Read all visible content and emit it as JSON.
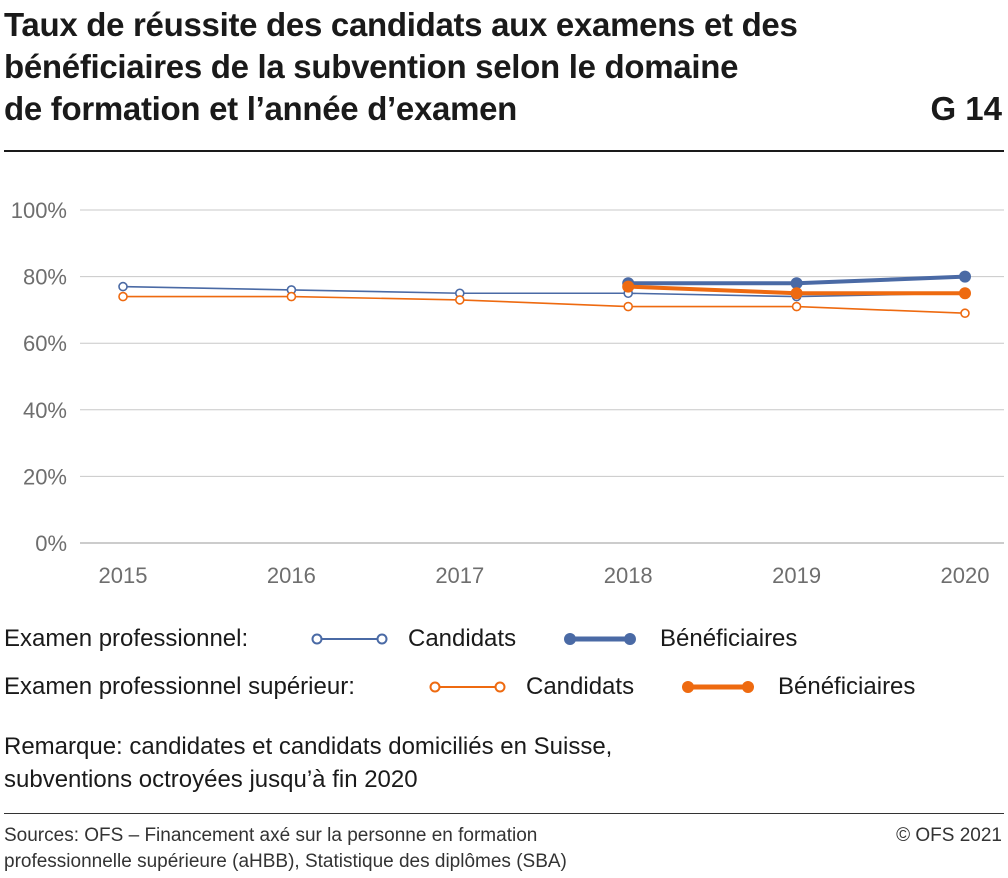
{
  "title_lines": [
    "Taux de réussite des candidats aux examens et des",
    "bénéficiaires de la subvention selon le domaine",
    "de formation et l’année d’examen"
  ],
  "graphic_number": "G 14",
  "legend": {
    "group1_label": "Examen professionnel:",
    "group2_label": "Examen professionnel supérieur:",
    "candidats": "Candidats",
    "beneficiaires": "Bénéficiaires"
  },
  "note_lines": [
    "Remarque: candidates et candidats domiciliés en Suisse,",
    "subventions octroyées jusqu’à fin 2020"
  ],
  "sources_lines": [
    "Sources: OFS – Financement axé sur la personne en formation",
    "professionnelle supérieure (aHBB), Statistique des diplômes (SBA)"
  ],
  "copyright": "© OFS 2021",
  "colors": {
    "blue": "#4a6aa5",
    "orange": "#ee6a10",
    "grid": "#c8c8c8",
    "axis_text": "#6e6e6e"
  },
  "chart_data": {
    "type": "line",
    "x": [
      "2015",
      "2016",
      "2017",
      "2018",
      "2019",
      "2020"
    ],
    "ylim": [
      0,
      100
    ],
    "yticks": [
      0,
      20,
      40,
      60,
      80,
      100
    ],
    "ytick_labels": [
      "0%",
      "20%",
      "40%",
      "60%",
      "80%",
      "100%"
    ],
    "grid": true,
    "legend_position": "bottom",
    "series": [
      {
        "name": "Candidats",
        "group": "Examen professionnel",
        "color": "#4a6aa5",
        "style": "thin-hollow",
        "values": [
          77,
          76,
          75,
          75,
          74,
          75
        ]
      },
      {
        "name": "Candidats",
        "group": "Examen professionnel supérieur",
        "color": "#ee6a10",
        "style": "thin-hollow",
        "values": [
          74,
          74,
          73,
          71,
          71,
          69
        ]
      },
      {
        "name": "Bénéficiaires",
        "group": "Examen professionnel",
        "color": "#4a6aa5",
        "style": "thick-filled",
        "values": [
          null,
          null,
          null,
          78,
          78,
          80
        ]
      },
      {
        "name": "Bénéficiaires",
        "group": "Examen professionnel supérieur",
        "color": "#ee6a10",
        "style": "thick-filled",
        "values": [
          null,
          null,
          null,
          77,
          75,
          75
        ]
      }
    ]
  }
}
